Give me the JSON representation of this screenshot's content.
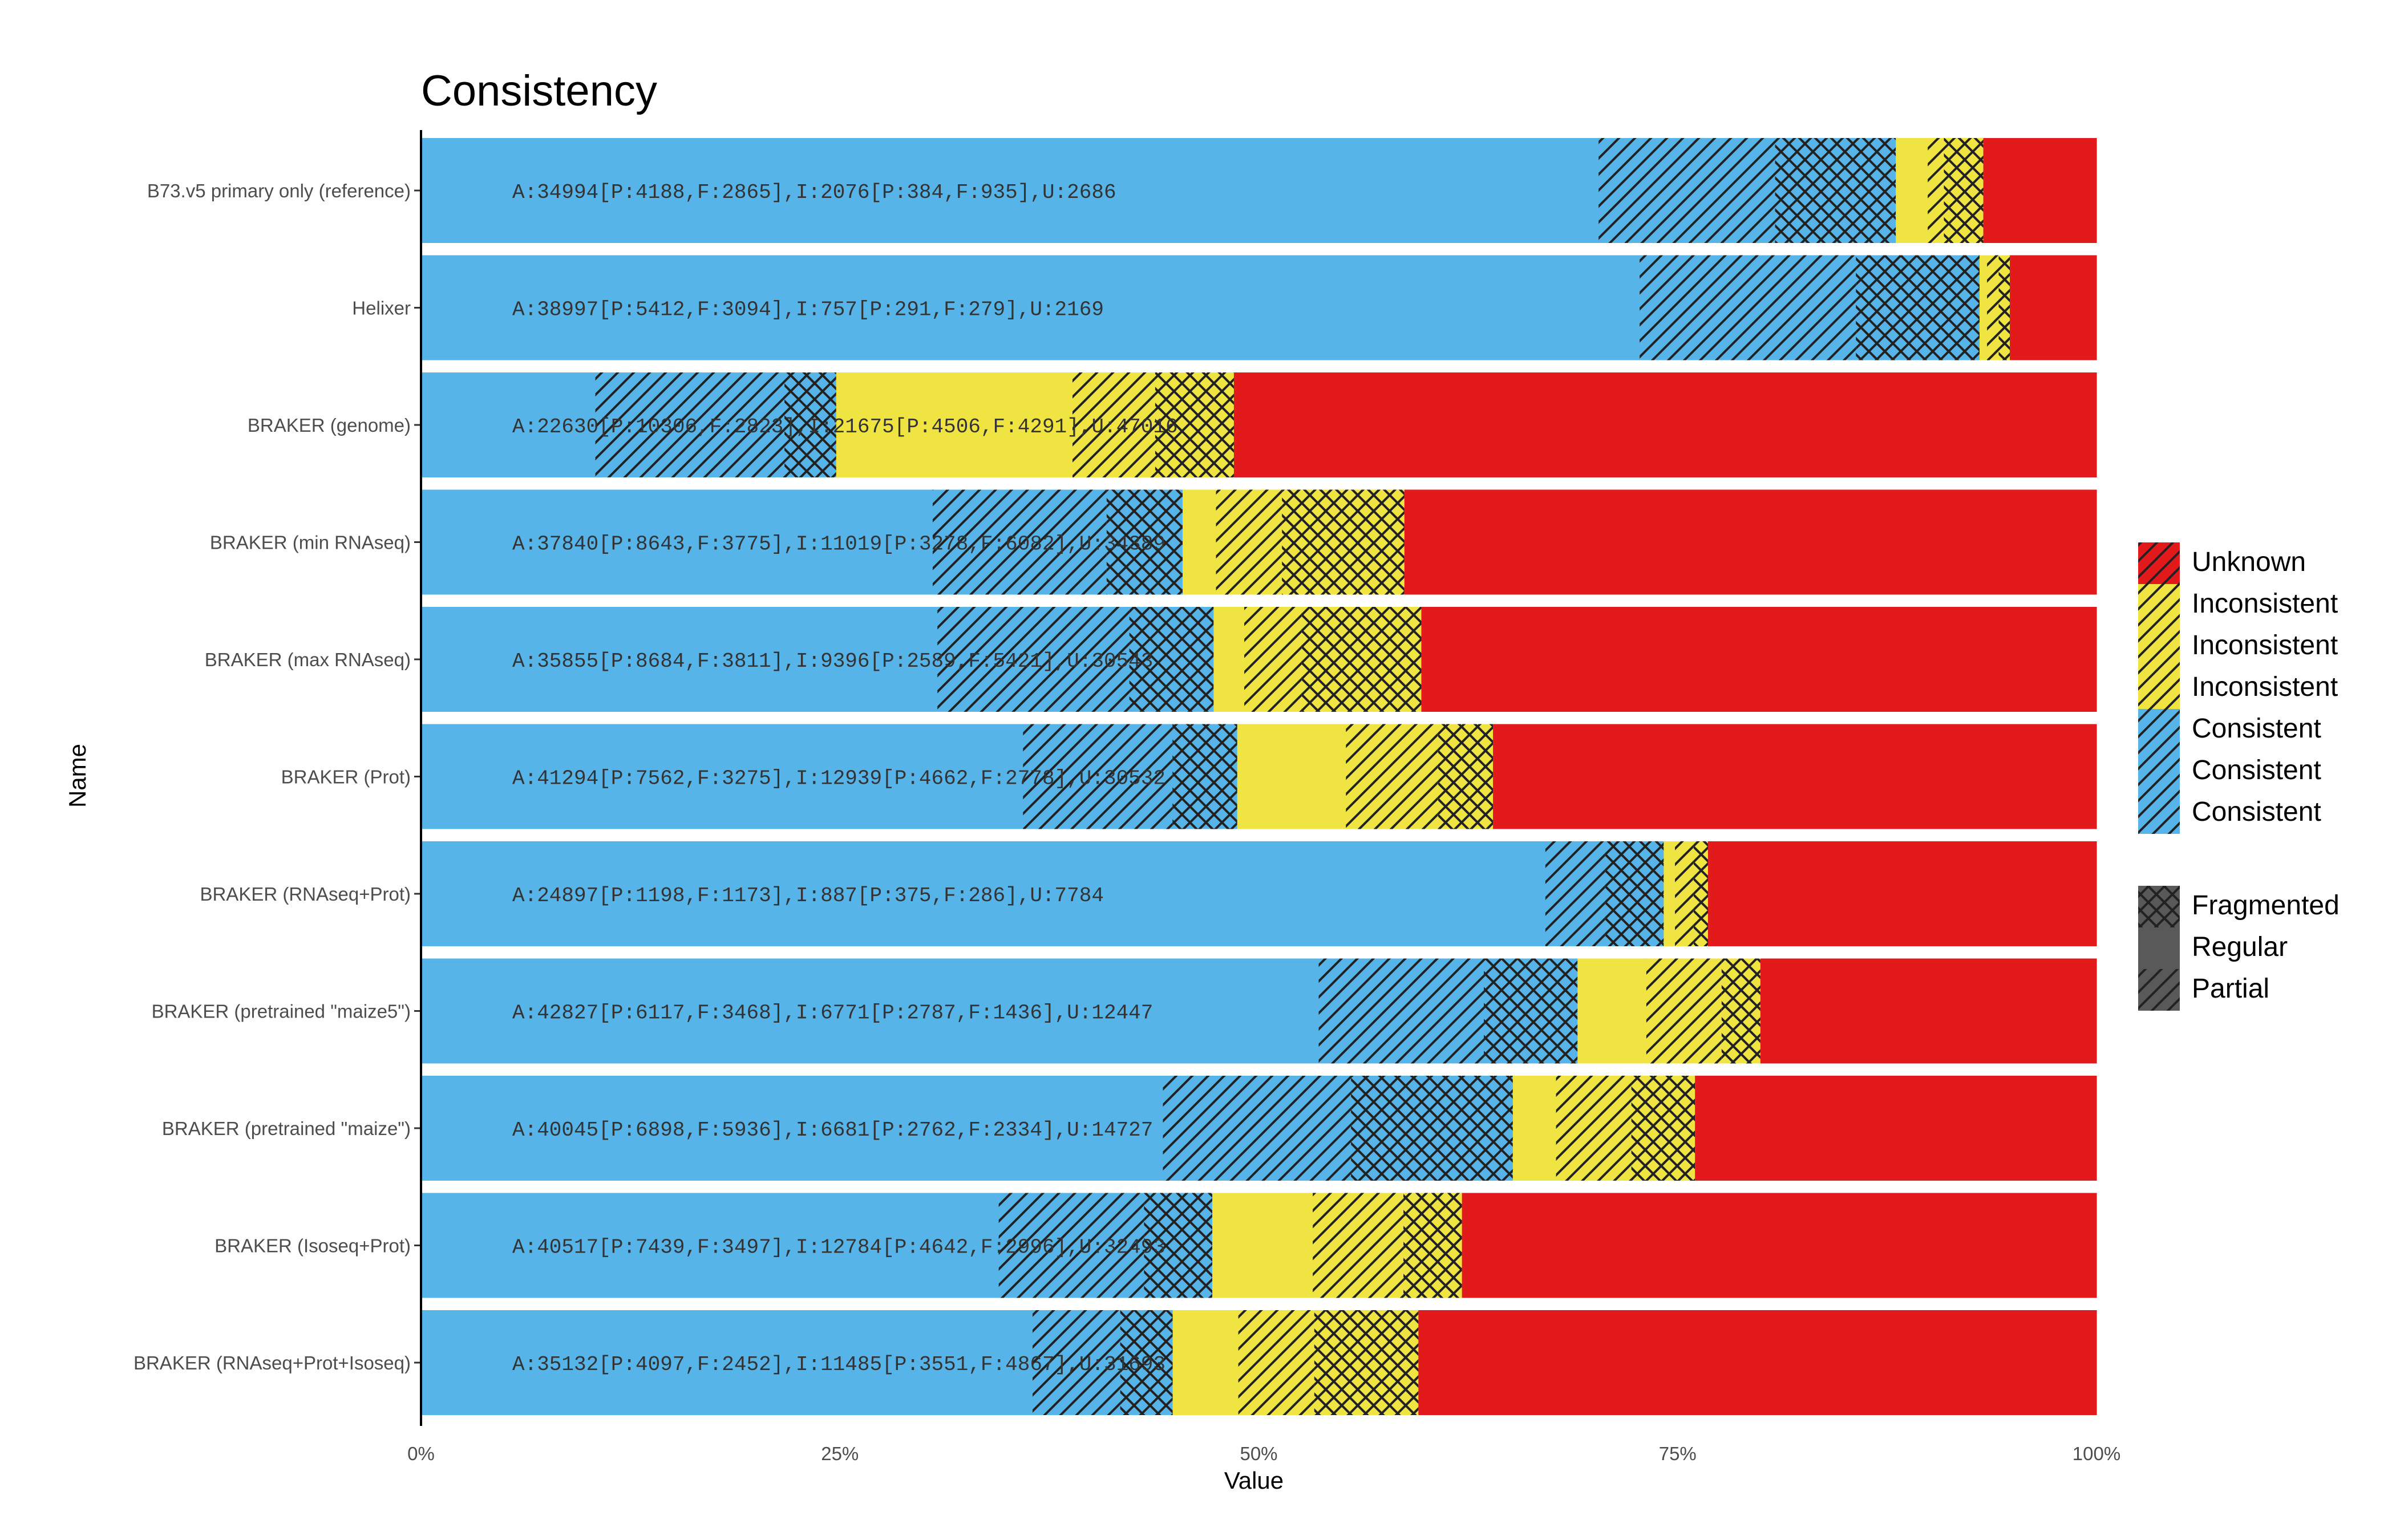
{
  "chart_data": {
    "type": "bar",
    "orientation": "horizontal",
    "stacked": true,
    "normalized": true,
    "title": "Consistency",
    "xlabel": "Value",
    "ylabel": "Name",
    "xlim": [
      0,
      100
    ],
    "x_ticks": [
      "0%",
      "25%",
      "50%",
      "75%",
      "100%"
    ],
    "grid": false,
    "legend_position": "right",
    "colors": {
      "Unknown": "#e31a1c",
      "Inconsistent": "#f0e442",
      "Consistent": "#56b4e9",
      "neutral": "#595959"
    },
    "legend": {
      "fill": [
        {
          "label": "Unknown",
          "color": "#e31a1c",
          "pattern": "stripe"
        },
        {
          "label": "Inconsistent",
          "color": "#f0e442",
          "pattern": "stripe"
        },
        {
          "label": "Inconsistent",
          "color": "#f0e442",
          "pattern": "stripe"
        },
        {
          "label": "Inconsistent",
          "color": "#f0e442",
          "pattern": "stripe"
        },
        {
          "label": "Consistent",
          "color": "#56b4e9",
          "pattern": "stripe"
        },
        {
          "label": "Consistent",
          "color": "#56b4e9",
          "pattern": "stripe"
        },
        {
          "label": "Consistent",
          "color": "#56b4e9",
          "pattern": "stripe"
        }
      ],
      "pattern": [
        {
          "label": "Fragmented",
          "pattern": "crosshatch"
        },
        {
          "label": "Regular",
          "pattern": "none"
        },
        {
          "label": "Partial",
          "pattern": "stripe"
        }
      ]
    },
    "segment_order": [
      "Consistent Regular",
      "Consistent Partial",
      "Consistent Fragmented",
      "Inconsistent Regular",
      "Inconsistent Partial",
      "Inconsistent Fragmented",
      "Unknown"
    ],
    "categories": [
      "B73.v5 primary only (reference)",
      "Helixer",
      "BRAKER (genome)",
      "BRAKER (min RNAseq)",
      "BRAKER (max RNAseq)",
      "BRAKER (Prot)",
      "BRAKER (RNAseq+Prot)",
      "BRAKER (pretrained \"maize5\")",
      "BRAKER (pretrained \"maize\")",
      "BRAKER (Isoseq+Prot)",
      "BRAKER (RNAseq+Prot+Isoseq)"
    ],
    "bar_labels": [
      "A:34994[P:4188,F:2865],I:2076[P:384,F:935],U:2686",
      "A:38997[P:5412,F:3094],I:757[P:291,F:279],U:2169",
      "A:22630[P:10306,F:2823],I:21675[P:4506,F:4291],U:47016",
      "A:37840[P:8643,F:3775],I:11019[P:3278,F:6082],U:34389",
      "A:35855[P:8684,F:3811],I:9396[P:2589,F:5421],U:30543",
      "A:41294[P:7562,F:3275],I:12939[P:4662,F:2778],U:30532",
      "A:24897[P:1198,F:1173],I:887[P:375,F:286],U:7784",
      "A:42827[P:6117,F:3468],I:6771[P:2787,F:1436],U:12447",
      "A:40045[P:6898,F:5936],I:6681[P:2762,F:2334],U:14727",
      "A:40517[P:7439,F:3497],I:12784[P:4642,F:2996],U:32493",
      "A:35132[P:4097,F:2452],I:11485[P:3551,F:4867],U:31693"
    ],
    "series": [
      {
        "name": "Consistent Regular",
        "values": [
          27941,
          30491,
          9501,
          25422,
          23360,
          30457,
          22526,
          33242,
          27211,
          29581,
          28583
        ]
      },
      {
        "name": "Consistent Partial",
        "values": [
          4188,
          5412,
          10306,
          8643,
          8684,
          7562,
          1198,
          6117,
          6898,
          7439,
          4097
        ]
      },
      {
        "name": "Consistent Fragmented",
        "values": [
          2865,
          3094,
          2823,
          3775,
          3811,
          3275,
          1173,
          3468,
          5936,
          3497,
          2452
        ]
      },
      {
        "name": "Inconsistent Regular",
        "values": [
          757,
          187,
          12878,
          1659,
          1386,
          5499,
          226,
          2548,
          1585,
          5146,
          3067
        ]
      },
      {
        "name": "Inconsistent Partial",
        "values": [
          384,
          291,
          4506,
          3278,
          2589,
          4662,
          375,
          2787,
          2762,
          4642,
          3551
        ]
      },
      {
        "name": "Inconsistent Fragmented",
        "values": [
          935,
          279,
          4291,
          6082,
          5421,
          2778,
          286,
          1436,
          2334,
          2996,
          4867
        ]
      },
      {
        "name": "Unknown",
        "values": [
          2686,
          2169,
          47016,
          34389,
          30543,
          30532,
          7784,
          12447,
          14727,
          32493,
          31693
        ]
      }
    ]
  }
}
